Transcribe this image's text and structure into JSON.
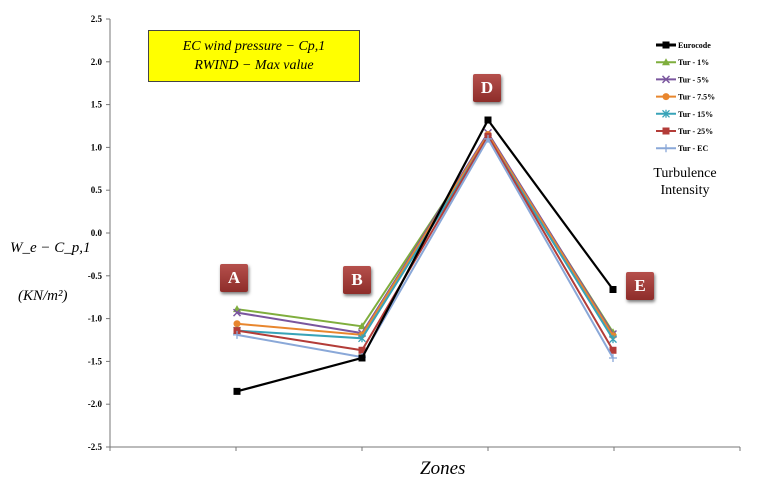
{
  "chart_data": {
    "type": "line",
    "title": [
      "EC wind pressure − Cp,1",
      "RWIND − Max value"
    ],
    "xlabel": "Zones",
    "ylabel": "W_e − C_p,1",
    "yunit": "(KN/m²)",
    "categories": [
      "A",
      "B",
      "D",
      "E"
    ],
    "ylim": [
      -2.5,
      2.5
    ],
    "yticks": [
      "2.5",
      "2.0",
      "1.5",
      "1.0",
      "0.5",
      "0.0",
      "-0.5",
      "-1.0",
      "-1.5",
      "-2.0",
      "-2.5"
    ],
    "grid": false,
    "legend_placement": "right",
    "legend_title": [
      "Turbulence",
      "Intensity"
    ],
    "series": [
      {
        "name": "Eurocode",
        "color": "#000000",
        "marker": "square",
        "values": [
          -1.85,
          -1.46,
          1.32,
          -0.66
        ]
      },
      {
        "name": "Tur - 1%",
        "color": "#7fae3d",
        "marker": "triangle",
        "values": [
          -0.89,
          -1.09,
          1.14,
          -1.16
        ]
      },
      {
        "name": "Tur - 5%",
        "color": "#7a569e",
        "marker": "x",
        "values": [
          -0.93,
          -1.17,
          1.17,
          -1.18
        ]
      },
      {
        "name": "Tur - 7.5%",
        "color": "#e8862e",
        "marker": "circle",
        "values": [
          -1.06,
          -1.19,
          1.15,
          -1.2
        ]
      },
      {
        "name": "Tur - 15%",
        "color": "#38a3b8",
        "marker": "star",
        "values": [
          -1.14,
          -1.23,
          1.12,
          -1.24
        ]
      },
      {
        "name": "Tur - 25%",
        "color": "#b33c38",
        "marker": "square",
        "values": [
          -1.14,
          -1.37,
          1.13,
          -1.37
        ]
      },
      {
        "name": "Tur - EC",
        "color": "#8aa8d8",
        "marker": "plus",
        "values": [
          -1.19,
          -1.45,
          1.1,
          -1.46
        ]
      }
    ]
  }
}
